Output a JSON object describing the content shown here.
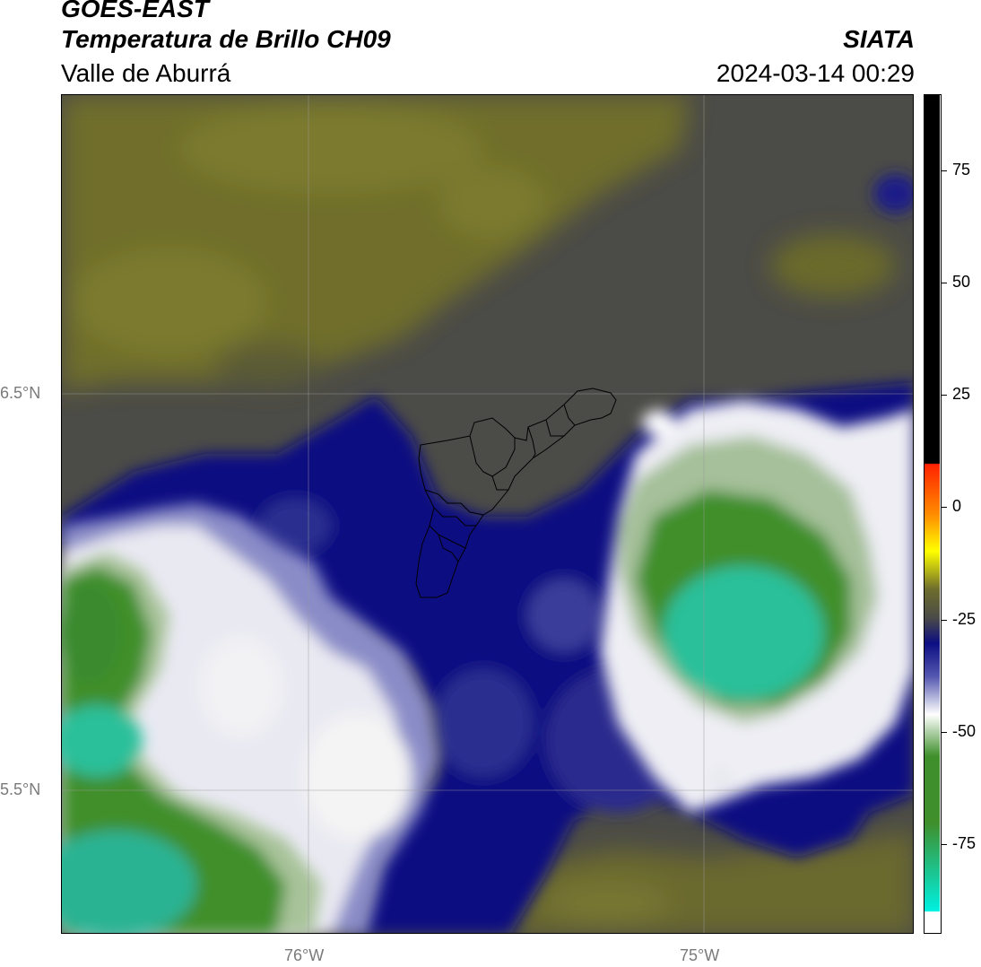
{
  "header": {
    "satellite": "GOES-EAST",
    "product": "Temperatura de Brillo CH09",
    "region": "Valle de Aburrá",
    "organization": "SIATA",
    "datetime": "2024-03-14 00:29"
  },
  "map": {
    "lat_labels": [
      "6.5°N",
      "5.5°N"
    ],
    "lon_labels": [
      "76°W",
      "75°W"
    ],
    "colors": {
      "olive": "#6f6e2c",
      "dark_gray": "#4a4a48",
      "navy": "#0c0e82",
      "periwinkle": "#5558b0",
      "white": "#f2f2f2",
      "light_green": "#a9c29b",
      "green": "#3f8f2c",
      "teal": "#2bc09a"
    }
  },
  "colorbar": {
    "ticks": [
      "75",
      "50",
      "25",
      "0",
      "-25",
      "-50",
      "-75"
    ],
    "tick_values": [
      75,
      50,
      25,
      0,
      -25,
      -50,
      -75
    ],
    "range": [
      -95,
      92
    ]
  }
}
